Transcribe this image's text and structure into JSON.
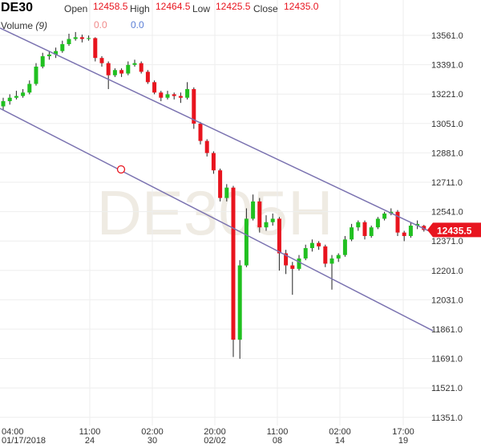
{
  "header": {
    "symbol": "DE30",
    "open_label": "Open",
    "open": "12458.5",
    "high_label": "High",
    "high": "12464.5",
    "low_label": "Low",
    "low": "12425.5",
    "close_label": "Close",
    "close": "12435.0",
    "volume_label": "Volume",
    "volume_count": "(9)",
    "volume_up": "0.0",
    "volume_down": "0.0"
  },
  "colors": {
    "up": "#20c020",
    "down": "#e8141e",
    "channel": "#7a72b0",
    "grid": "#eeeeee",
    "price_tag": "#e8141e",
    "volume_up": "#f08a8a",
    "volume_down": "#5b7fd6"
  },
  "watermark": "DE305H",
  "chart_data": {
    "type": "candlestick",
    "y_ticks": [
      "13561.0",
      "13391.0",
      "13221.0",
      "13051.0",
      "12881.0",
      "12711.0",
      "12541.0",
      "12371.0",
      "12201.0",
      "12031.0",
      "11861.0",
      "11691.0",
      "11521.0",
      "11351.0"
    ],
    "ylim": [
      11351,
      13561
    ],
    "x_ticks": [
      {
        "time": "04:00",
        "date": "01/17/2018"
      },
      {
        "time": "11:00",
        "date": "24"
      },
      {
        "time": "02:00",
        "date": "30"
      },
      {
        "time": "20:00",
        "date": "02/02"
      },
      {
        "time": "11:00",
        "date": "08"
      },
      {
        "time": "02:00",
        "date": "14"
      },
      {
        "time": "17:00",
        "date": "19"
      }
    ],
    "last_price": "12435.5",
    "grid": true,
    "candles": [
      [
        13150,
        13200,
        13130,
        13180
      ],
      [
        13180,
        13220,
        13160,
        13200
      ],
      [
        13200,
        13240,
        13190,
        13210
      ],
      [
        13210,
        13250,
        13200,
        13230
      ],
      [
        13230,
        13300,
        13220,
        13280
      ],
      [
        13280,
        13400,
        13270,
        13380
      ],
      [
        13380,
        13460,
        13370,
        13440
      ],
      [
        13440,
        13470,
        13420,
        13450
      ],
      [
        13450,
        13490,
        13430,
        13470
      ],
      [
        13470,
        13530,
        13460,
        13510
      ],
      [
        13510,
        13570,
        13500,
        13540
      ],
      [
        13540,
        13580,
        13530,
        13550
      ],
      [
        13550,
        13565,
        13520,
        13540
      ],
      [
        13540,
        13560,
        13530,
        13545
      ],
      [
        13545,
        13550,
        13410,
        13430
      ],
      [
        13430,
        13440,
        13380,
        13400
      ],
      [
        13400,
        13410,
        13250,
        13330
      ],
      [
        13330,
        13370,
        13320,
        13360
      ],
      [
        13360,
        13370,
        13320,
        13340
      ],
      [
        13340,
        13410,
        13330,
        13390
      ],
      [
        13390,
        13420,
        13380,
        13400
      ],
      [
        13400,
        13410,
        13340,
        13350
      ],
      [
        13350,
        13360,
        13280,
        13290
      ],
      [
        13290,
        13300,
        13220,
        13230
      ],
      [
        13230,
        13240,
        13180,
        13200
      ],
      [
        13200,
        13240,
        13190,
        13220
      ],
      [
        13220,
        13230,
        13190,
        13210
      ],
      [
        13210,
        13230,
        13170,
        13200
      ],
      [
        13200,
        13290,
        13190,
        13250
      ],
      [
        13250,
        13260,
        13020,
        13050
      ],
      [
        13050,
        13060,
        12930,
        12950
      ],
      [
        12950,
        12960,
        12860,
        12880
      ],
      [
        12880,
        12890,
        12760,
        12780
      ],
      [
        12780,
        12790,
        12600,
        12620
      ],
      [
        12620,
        12700,
        12600,
        12680
      ],
      [
        12680,
        12690,
        11700,
        11800
      ],
      [
        11800,
        12260,
        11690,
        12230
      ],
      [
        12230,
        12560,
        12220,
        12500
      ],
      [
        12500,
        12640,
        12490,
        12600
      ],
      [
        12600,
        12620,
        12420,
        12450
      ],
      [
        12450,
        12520,
        12430,
        12480
      ],
      [
        12480,
        12530,
        12460,
        12500
      ],
      [
        12500,
        12510,
        12200,
        12300
      ],
      [
        12300,
        12320,
        12180,
        12230
      ],
      [
        12230,
        12250,
        12060,
        12210
      ],
      [
        12210,
        12290,
        12200,
        12270
      ],
      [
        12270,
        12350,
        12260,
        12330
      ],
      [
        12330,
        12380,
        12310,
        12360
      ],
      [
        12360,
        12370,
        12320,
        12340
      ],
      [
        12340,
        12350,
        12220,
        12240
      ],
      [
        12240,
        12290,
        12090,
        12270
      ],
      [
        12270,
        12300,
        12250,
        12290
      ],
      [
        12290,
        12400,
        12280,
        12380
      ],
      [
        12380,
        12470,
        12370,
        12450
      ],
      [
        12450,
        12490,
        12430,
        12480
      ],
      [
        12480,
        12490,
        12380,
        12400
      ],
      [
        12400,
        12460,
        12390,
        12450
      ],
      [
        12450,
        12510,
        12440,
        12500
      ],
      [
        12500,
        12540,
        12490,
        12530
      ],
      [
        12530,
        12560,
        12520,
        12540
      ],
      [
        12540,
        12550,
        12400,
        12420
      ],
      [
        12420,
        12430,
        12370,
        12400
      ],
      [
        12400,
        12480,
        12390,
        12460
      ],
      [
        12460,
        12490,
        12440,
        12470
      ],
      [
        12458.5,
        12464.5,
        12425.5,
        12435
      ]
    ],
    "channel_upper": [
      13603,
      12418
    ],
    "channel_lower": [
      13138,
      11852
    ]
  }
}
